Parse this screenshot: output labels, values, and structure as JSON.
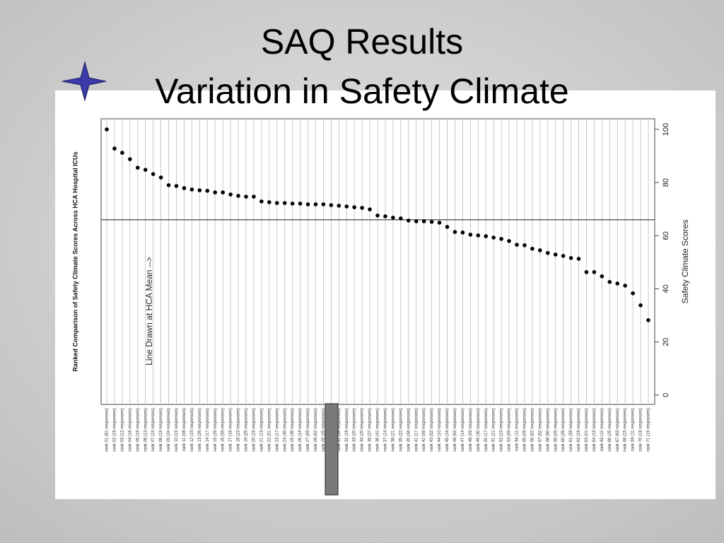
{
  "chart_data": {
    "type": "dot",
    "title": "SAQ Results",
    "subtitle": "Variation in Safety Climate",
    "y_label": "Safety Climate Scores",
    "x_label": "Ranked Comparison of Safety Climate Scores Across HCA Hospital ICUs",
    "annotation": "Line Drawn at HCA Mean -->",
    "mean_line": 66,
    "color": "#000000",
    "grid": true,
    "ylim": [
      -3.5,
      104
    ],
    "yticks": [
      0,
      20,
      40,
      60,
      80,
      100
    ],
    "categories": [
      "rank 01 (61 responses)",
      "rank 02 (19 responses)",
      "rank 03 (12 responses)",
      "rank 04 (16 responses)",
      "rank 05 (19 responses)",
      "rank 06 (13 responses)",
      "rank 07 (19 responses)",
      "rank 08 (19 responses)",
      "rank 09 (24 responses)",
      "rank 10 (19 responses)",
      "rank 11 (08 responses)",
      "rank 12 (15 responses)",
      "rank 13 (26 responses)",
      "rank 14 (17 responses)",
      "rank 15 (29 responses)",
      "rank 16 (33 responses)",
      "rank 17 (16 responses)",
      "rank 18 (23 responses)",
      "rank 19 (25 responses)",
      "rank 20 (23 responses)",
      "rank 21 (13 responses)",
      "rank 22 (01 responses)",
      "rank 23 (17 responses)",
      "rank 24 (40 responses)",
      "rank 25 (39 responses)",
      "rank 26 (14 responses)",
      "rank 27 (65 responses)",
      "rank 28 (62 responses)",
      "rank 29 (25 responses)",
      null,
      "rank 31 (34 responses)",
      "rank 32 (18 responses)",
      "rank 33 (20 responses)",
      "rank 34 (20 responses)",
      "rank 35 (27 responses)",
      "rank 36 (41 responses)",
      "rank 37 (14 responses)",
      "rank 38 (21 responses)",
      "rank 39 (22 responses)",
      "rank 40 (44 responses)",
      "rank 41 (17 responses)",
      "rank 42 (59 responses)",
      "rank 43 (52 responses)",
      "rank 44 (10 responses)",
      "rank 45 (16 responses)",
      "rank 46 (62 responses)",
      "rank 47 (14 responses)",
      "rank 48 (09 responses)",
      "rank 49 (30 responses)",
      "rank 50 (17 responses)",
      "rank 51 (21 responses)",
      "rank 52 (23 responses)",
      "rank 53 (09 responses)",
      "rank 54 (11 responses)",
      "rank 55 (09 responses)",
      "rank 56 (62 responses)",
      "rank 57 (62 responses)",
      "rank 58 (50 responses)",
      "rank 59 (05 responses)",
      "rank 60 (26 responses)",
      "rank 61 (59 responses)",
      "rank 62 (18 responses)",
      "rank 63 (01 responses)",
      "rank 64 (19 responses)",
      "rank 65 (11 responses)",
      "rank 66 (25 responses)",
      "rank 67 (63 responses)",
      "rank 68 (15 responses)",
      "rank 69 (11 responses)",
      "rank 70 (18 responses)",
      "rank 71 (19 responses)"
    ],
    "values": [
      100,
      92.8,
      91.2,
      88.8,
      85.6,
      84.8,
      83.2,
      81.9,
      79,
      78.7,
      77.9,
      77.4,
      77.1,
      76.9,
      76.3,
      76.3,
      75.5,
      75,
      74.7,
      74.7,
      72.9,
      72.6,
      72.3,
      72.3,
      72.1,
      72.1,
      71.8,
      71.8,
      71.8,
      71.5,
      71.3,
      71,
      70.7,
      70.5,
      69.9,
      67.6,
      67.3,
      66.8,
      66.5,
      65.7,
      65.4,
      65.4,
      65.2,
      64.9,
      63.3,
      61.4,
      61.2,
      60.4,
      60.1,
      59.8,
      59.3,
      58.8,
      58,
      56.6,
      56.4,
      55.1,
      54.5,
      53.5,
      52.9,
      52.4,
      51.6,
      51.3,
      46.3,
      46.3,
      44.7,
      42.6,
      42,
      41.2,
      38.3,
      33.8,
      28.2
    ]
  }
}
